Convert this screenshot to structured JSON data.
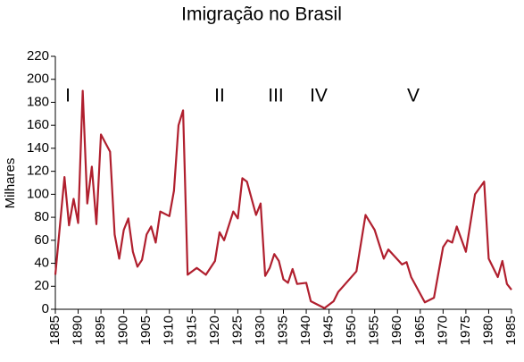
{
  "chart_data": {
    "type": "line",
    "title": "Imigração no Brasil",
    "y_label": "Milhares",
    "annotations": [
      "I",
      "II",
      "III",
      "IV",
      "V"
    ],
    "x": [
      1885,
      1887,
      1888,
      1889,
      1890,
      1891,
      1892,
      1893,
      1894,
      1895,
      1897,
      1898,
      1899,
      1900,
      1901,
      1902,
      1903,
      1904,
      1905,
      1906,
      1907,
      1908,
      1910,
      1911,
      1912,
      1913,
      1914,
      1916,
      1918,
      1920,
      1921,
      1922,
      1924,
      1925,
      1926,
      1927,
      1929,
      1930,
      1931,
      1932,
      1933,
      1934,
      1935,
      1936,
      1937,
      1938,
      1940,
      1941,
      1944,
      1946,
      1947,
      1951,
      1953,
      1955,
      1957,
      1958,
      1961,
      1962,
      1963,
      1966,
      1968,
      1970,
      1971,
      1972,
      1973,
      1975,
      1977,
      1979,
      1980,
      1982,
      1983,
      1984,
      1985
    ],
    "series": [
      {
        "name": "Imigração",
        "color": "#b01f2e",
        "values": [
          30,
          115,
          73,
          96,
          75,
          190,
          92,
          124,
          74,
          152,
          137,
          65,
          44,
          69,
          79,
          50,
          37,
          43,
          65,
          72,
          58,
          85,
          81,
          103,
          160,
          173,
          30,
          36,
          30,
          42,
          67,
          60,
          85,
          79,
          114,
          111,
          82,
          92,
          29,
          36,
          48,
          42,
          26,
          23,
          35,
          22,
          23,
          7,
          1,
          7,
          15,
          33,
          82,
          69,
          44,
          52,
          39,
          41,
          28,
          6,
          10,
          54,
          60,
          58,
          72,
          50,
          100,
          111,
          44,
          28,
          42,
          22,
          17
        ]
      }
    ],
    "xlim": [
      1885,
      1985
    ],
    "xticks": [
      1885,
      1890,
      1895,
      1900,
      1905,
      1910,
      1915,
      1920,
      1925,
      1930,
      1935,
      1940,
      1945,
      1950,
      1955,
      1960,
      1965,
      1970,
      1975,
      1980,
      1985
    ],
    "ylim": [
      0,
      220
    ],
    "yticks": [
      0,
      20,
      40,
      60,
      80,
      100,
      120,
      140,
      160,
      180,
      200,
      220
    ],
    "grid": false
  }
}
